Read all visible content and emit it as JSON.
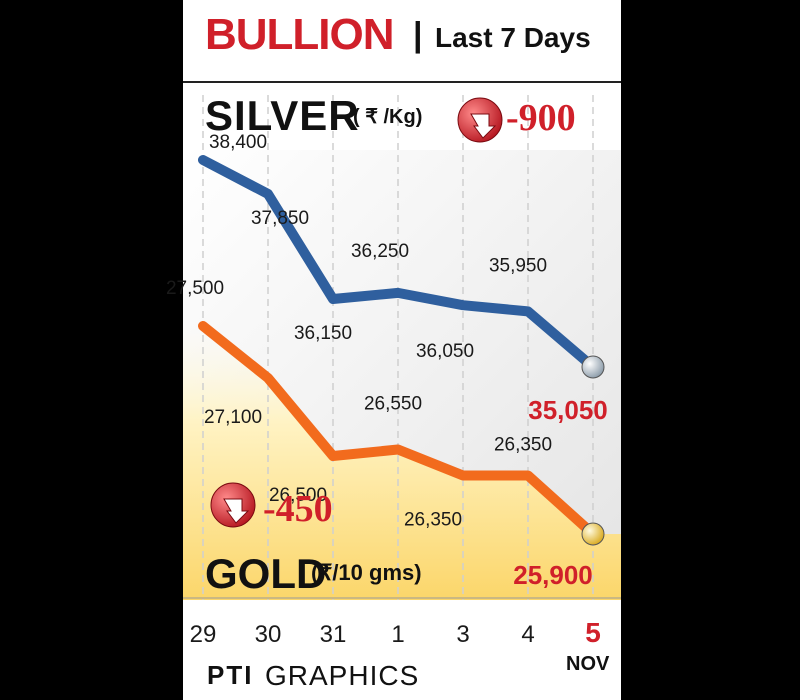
{
  "header": {
    "title": "BULLION",
    "separator": "|",
    "subtitle": "Last 7 Days"
  },
  "silver": {
    "label": "SILVER",
    "unit": "( ₹ /Kg)",
    "change": "-900"
  },
  "gold": {
    "label": "GOLD",
    "unit": "(₹/10 gms)",
    "change": "-450"
  },
  "x_axis": {
    "month": "NOV"
  },
  "footer": {
    "logo": "PTI",
    "text": "GRAPHICS"
  },
  "colors": {
    "silver_line": "#2f5f9e",
    "gold_line": "#f26b1d",
    "accent": "#d0202a"
  },
  "chart_data": {
    "type": "line",
    "categories": [
      "29",
      "30",
      "31",
      "1",
      "3",
      "4",
      "5"
    ],
    "series": [
      {
        "name": "SILVER",
        "values": [
          38400,
          37850,
          36150,
          36250,
          36050,
          35950,
          35050
        ],
        "labels": [
          "38,400",
          "37,850",
          "36,150",
          "36,250",
          "36,050",
          "35,950",
          "35,050"
        ]
      },
      {
        "name": "GOLD",
        "values": [
          27500,
          27100,
          26500,
          26550,
          26350,
          26350,
          25900
        ],
        "labels": [
          "27,500",
          "27,100",
          "26,500",
          "26,550",
          "26,350",
          "26,350",
          "25,900"
        ]
      }
    ]
  }
}
